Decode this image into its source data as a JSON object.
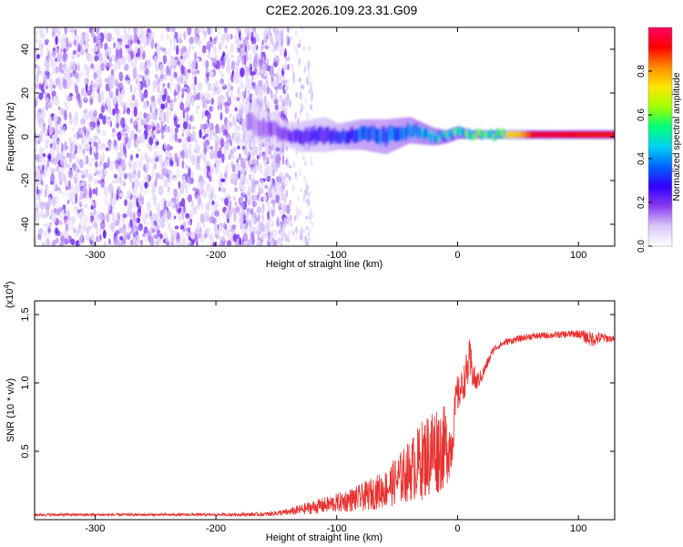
{
  "title": "C2E2.2026.109.23.31.G09",
  "chart_data": [
    {
      "type": "heatmap",
      "title": "C2E2.2026.109.23.31.G09",
      "xlabel": "Height of straight line (km)",
      "ylabel": "Frequency (Hz)",
      "xlim": [
        -350,
        130
      ],
      "ylim": [
        -50,
        50
      ],
      "x_ticks": [
        "-300",
        "-200",
        "-100",
        "0",
        "100"
      ],
      "y_ticks": [
        "-40",
        "-20",
        "0",
        "20",
        "40"
      ],
      "colorbar": {
        "label": "Normalized spectral amplitude",
        "range": [
          0.0,
          1.0
        ],
        "ticks": [
          "0.0",
          "0.2",
          "0.4",
          "0.6",
          "0.8"
        ],
        "colors": [
          "#ffffff",
          "#d8c8f8",
          "#8c3cf0",
          "#3200ff",
          "#0064ff",
          "#00d2f0",
          "#00ff78",
          "#a0ff00",
          "#ffe600",
          "#ff8c00",
          "#ff0000",
          "#ff0064"
        ]
      },
      "scatter_region": {
        "x_from": -350,
        "x_to": -140,
        "freq_from": -50,
        "freq_to": 50
      },
      "signal_trace": {
        "x": [
          -175,
          -160,
          -140,
          -130,
          -110,
          -100,
          -80,
          -60,
          -40,
          -20,
          -10,
          0,
          10,
          30,
          50,
          65,
          80,
          100,
          110,
          130
        ],
        "center_freq": [
          7,
          4,
          1,
          0,
          1,
          0,
          1,
          0,
          3,
          0,
          0,
          2,
          1,
          1,
          1,
          1,
          1,
          1,
          1,
          1
        ],
        "half_width": [
          9,
          8,
          6,
          7,
          8,
          6,
          7,
          8,
          6,
          4,
          3,
          3,
          2,
          2,
          2,
          2,
          2,
          2,
          2,
          2
        ],
        "amplitude": [
          0.15,
          0.2,
          0.25,
          0.3,
          0.3,
          0.35,
          0.4,
          0.4,
          0.45,
          0.5,
          0.55,
          0.6,
          0.65,
          0.7,
          0.75,
          0.95,
          0.95,
          0.9,
          0.9,
          0.9
        ]
      }
    },
    {
      "type": "line",
      "title": "",
      "xlabel": "Height of straight line (km)",
      "ylabel": "SNR (10 * v/v)",
      "y_scale_label": "(x10^4)",
      "y_scale_base": "(x10",
      "y_scale_exp": "4",
      "xlim": [
        -350,
        130
      ],
      "ylim": [
        0,
        1.6
      ],
      "x_ticks": [
        "-300",
        "-200",
        "-100",
        "0",
        "100"
      ],
      "y_ticks": [
        "0.5",
        "1.0",
        "1.5"
      ],
      "series": [
        {
          "name": "SNR",
          "color": "#e8312f",
          "x": [
            -350,
            -300,
            -250,
            -200,
            -160,
            -140,
            -120,
            -100,
            -80,
            -60,
            -40,
            -20,
            -10,
            -5,
            0,
            5,
            10,
            15,
            20,
            30,
            40,
            60,
            80,
            100,
            110,
            120,
            130
          ],
          "base": [
            0.03,
            0.03,
            0.03,
            0.03,
            0.03,
            0.04,
            0.06,
            0.08,
            0.1,
            0.14,
            0.22,
            0.3,
            0.35,
            0.42,
            0.9,
            1.0,
            1.15,
            1.0,
            1.05,
            1.25,
            1.3,
            1.34,
            1.35,
            1.36,
            1.32,
            1.33,
            1.32
          ],
          "noise": [
            0.02,
            0.02,
            0.02,
            0.02,
            0.03,
            0.05,
            0.1,
            0.14,
            0.2,
            0.28,
            0.45,
            0.7,
            0.6,
            0.4,
            0.25,
            0.25,
            0.35,
            0.15,
            0.1,
            0.05,
            0.05,
            0.05,
            0.05,
            0.06,
            0.12,
            0.08,
            0.04
          ]
        }
      ]
    }
  ]
}
